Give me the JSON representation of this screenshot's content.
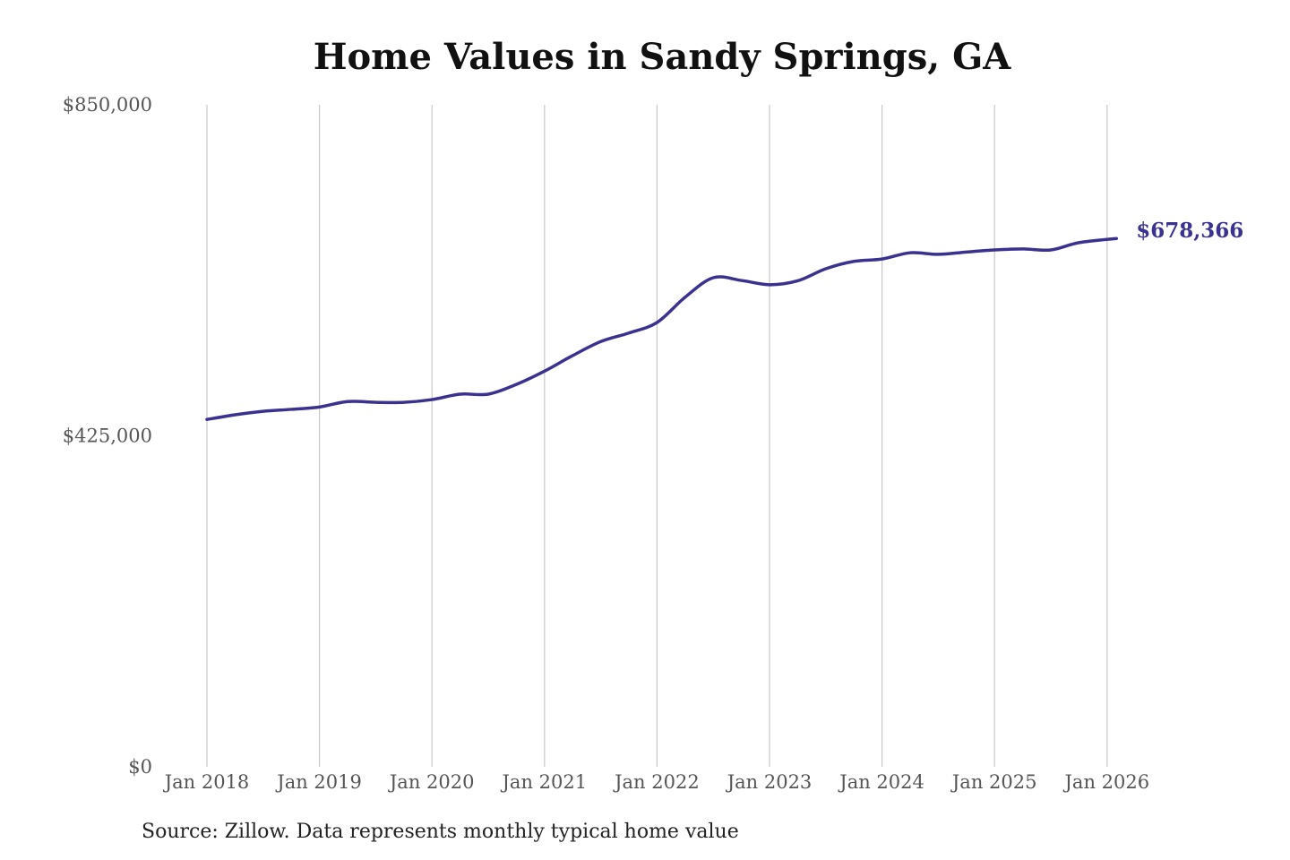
{
  "chart_data": {
    "type": "line",
    "title": "Home Values in Sandy Springs, GA",
    "source": "Source: Zillow. Data represents monthly typical home value",
    "ylim": [
      0,
      850000
    ],
    "y_ticks": [
      0,
      425000,
      850000
    ],
    "y_tick_labels": [
      "$0",
      "$425,000",
      "$850,000"
    ],
    "x_ticks": [
      "2018-01",
      "2019-01",
      "2020-01",
      "2021-01",
      "2022-01",
      "2023-01",
      "2024-01",
      "2025-01",
      "2026-01"
    ],
    "x_tick_labels": [
      "Jan 2018",
      "Jan 2019",
      "Jan 2020",
      "Jan 2021",
      "Jan 2022",
      "Jan 2023",
      "Jan 2024",
      "Jan 2025",
      "Jan 2026"
    ],
    "grid": "vertical",
    "line_color": "#3a3290",
    "end_label": "$678,366",
    "series": [
      {
        "x": [
          "2018-01",
          "2018-04",
          "2018-07",
          "2018-10",
          "2019-01",
          "2019-04",
          "2019-07",
          "2019-10",
          "2020-01",
          "2020-04",
          "2020-07",
          "2020-10",
          "2021-01",
          "2021-04",
          "2021-07",
          "2021-10",
          "2022-01",
          "2022-04",
          "2022-07",
          "2022-10",
          "2023-01",
          "2023-04",
          "2023-07",
          "2023-10",
          "2024-01",
          "2024-04",
          "2024-07",
          "2024-10",
          "2025-01",
          "2025-04",
          "2025-07",
          "2025-10",
          "2026-02"
        ],
        "y": [
          446000,
          452000,
          456500,
          459000,
          462000,
          469000,
          468000,
          468000,
          471500,
          478500,
          478500,
          491000,
          508000,
          528000,
          546000,
          557000,
          570500,
          603000,
          628000,
          624500,
          619000,
          624000,
          639500,
          649000,
          652000,
          660000,
          658000,
          661000,
          663700,
          665000,
          663700,
          673000,
          678366
        ]
      }
    ]
  }
}
